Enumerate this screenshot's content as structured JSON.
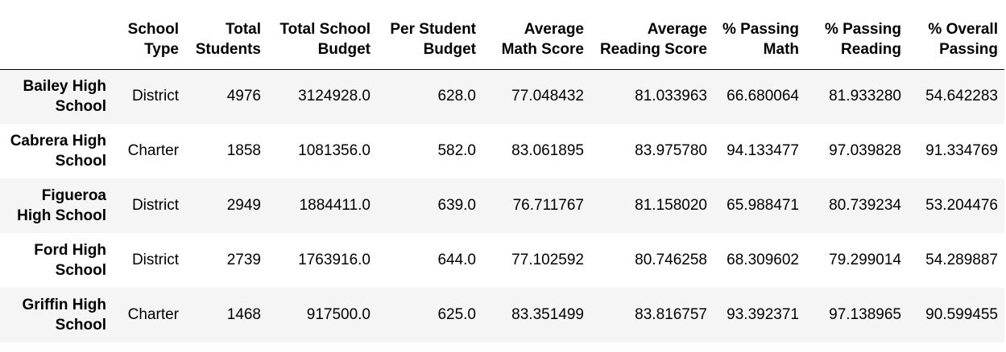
{
  "table": {
    "columns": [
      "",
      "School Type",
      "Total Students",
      "Total School Budget",
      "Per Student Budget",
      "Average Math Score",
      "Average Reading Score",
      "% Passing Math",
      "% Passing Reading",
      "% Overall Passing"
    ],
    "rows": [
      {
        "name": "Bailey High School",
        "type": "District",
        "total_students": "4976",
        "total_budget": "3124928.0",
        "per_student_budget": "628.0",
        "avg_math": "77.048432",
        "avg_reading": "81.033963",
        "pct_math": "66.680064",
        "pct_reading": "81.933280",
        "pct_overall": "54.642283"
      },
      {
        "name": "Cabrera High School",
        "type": "Charter",
        "total_students": "1858",
        "total_budget": "1081356.0",
        "per_student_budget": "582.0",
        "avg_math": "83.061895",
        "avg_reading": "83.975780",
        "pct_math": "94.133477",
        "pct_reading": "97.039828",
        "pct_overall": "91.334769"
      },
      {
        "name": "Figueroa High School",
        "type": "District",
        "total_students": "2949",
        "total_budget": "1884411.0",
        "per_student_budget": "639.0",
        "avg_math": "76.711767",
        "avg_reading": "81.158020",
        "pct_math": "65.988471",
        "pct_reading": "80.739234",
        "pct_overall": "53.204476"
      },
      {
        "name": "Ford High School",
        "type": "District",
        "total_students": "2739",
        "total_budget": "1763916.0",
        "per_student_budget": "644.0",
        "avg_math": "77.102592",
        "avg_reading": "80.746258",
        "pct_math": "68.309602",
        "pct_reading": "79.299014",
        "pct_overall": "54.289887"
      },
      {
        "name": "Griffin High School",
        "type": "Charter",
        "total_students": "1468",
        "total_budget": "917500.0",
        "per_student_budget": "625.0",
        "avg_math": "83.351499",
        "avg_reading": "83.816757",
        "pct_math": "93.392371",
        "pct_reading": "97.138965",
        "pct_overall": "90.599455"
      }
    ]
  }
}
